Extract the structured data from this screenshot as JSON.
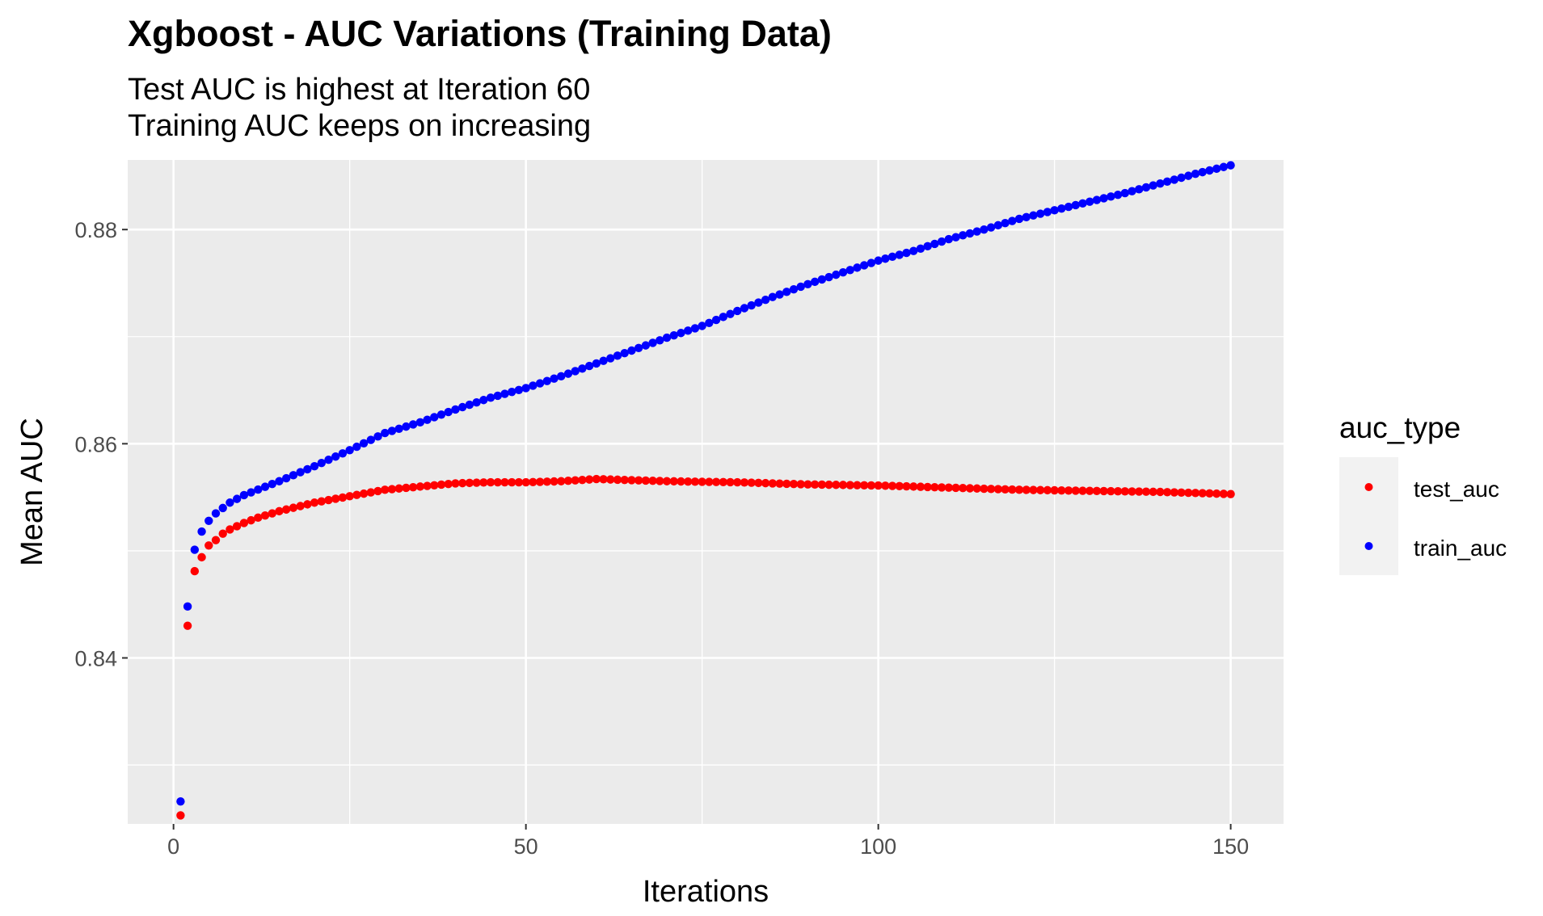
{
  "chart_data": {
    "type": "scatter",
    "title": "Xgboost - AUC Variations (Training Data)",
    "subtitle_lines": [
      "Test AUC is highest at Iteration 60",
      "Training AUC keeps on increasing"
    ],
    "xlabel": "Iterations",
    "ylabel": "Mean AUC",
    "xlim": [
      -6.5,
      157.5
    ],
    "ylim": [
      0.8245,
      0.8865
    ],
    "x_ticks": [
      0,
      50,
      100,
      150
    ],
    "x_tick_labels": [
      "0",
      "50",
      "100",
      "150"
    ],
    "y_ticks": [
      0.84,
      0.86,
      0.88
    ],
    "y_tick_labels": [
      "0.84",
      "0.86",
      "0.88"
    ],
    "grid": true,
    "legend": {
      "title": "auc_type",
      "position": "right",
      "entries": [
        "test_auc",
        "train_auc"
      ]
    },
    "series": [
      {
        "name": "test_auc",
        "color": "#ff0000",
        "anchors": [
          [
            1,
            0.8253
          ],
          [
            2,
            0.843
          ],
          [
            3,
            0.8481
          ],
          [
            4,
            0.8494
          ],
          [
            5,
            0.8505
          ],
          [
            6,
            0.851
          ],
          [
            7,
            0.8516
          ],
          [
            8,
            0.852
          ],
          [
            10,
            0.8526
          ],
          [
            12,
            0.8531
          ],
          [
            15,
            0.8537
          ],
          [
            20,
            0.8545
          ],
          [
            25,
            0.8551
          ],
          [
            30,
            0.8557
          ],
          [
            35,
            0.856
          ],
          [
            40,
            0.8563
          ],
          [
            45,
            0.8564
          ],
          [
            50,
            0.8564
          ],
          [
            55,
            0.8565
          ],
          [
            60,
            0.8567
          ],
          [
            65,
            0.8566
          ],
          [
            70,
            0.8565
          ],
          [
            80,
            0.8564
          ],
          [
            90,
            0.8562
          ],
          [
            100,
            0.8561
          ],
          [
            110,
            0.8559
          ],
          [
            120,
            0.8557
          ],
          [
            130,
            0.8556
          ],
          [
            140,
            0.8555
          ],
          [
            150,
            0.8553
          ]
        ]
      },
      {
        "name": "train_auc",
        "color": "#0000ff",
        "anchors": [
          [
            1,
            0.8266
          ],
          [
            2,
            0.8448
          ],
          [
            3,
            0.8501
          ],
          [
            4,
            0.8518
          ],
          [
            5,
            0.8528
          ],
          [
            6,
            0.8535
          ],
          [
            7,
            0.854
          ],
          [
            8,
            0.8545
          ],
          [
            10,
            0.8552
          ],
          [
            15,
            0.8565
          ],
          [
            20,
            0.8579
          ],
          [
            25,
            0.8594
          ],
          [
            30,
            0.861
          ],
          [
            35,
            0.862
          ],
          [
            40,
            0.8632
          ],
          [
            45,
            0.8643
          ],
          [
            50,
            0.8652
          ],
          [
            55,
            0.8663
          ],
          [
            60,
            0.8675
          ],
          [
            65,
            0.8687
          ],
          [
            70,
            0.8699
          ],
          [
            75,
            0.871
          ],
          [
            80,
            0.8724
          ],
          [
            85,
            0.8737
          ],
          [
            90,
            0.8749
          ],
          [
            95,
            0.876
          ],
          [
            100,
            0.8771
          ],
          [
            105,
            0.878
          ],
          [
            110,
            0.8791
          ],
          [
            115,
            0.88
          ],
          [
            120,
            0.881
          ],
          [
            125,
            0.8818
          ],
          [
            130,
            0.8826
          ],
          [
            135,
            0.8834
          ],
          [
            140,
            0.8843
          ],
          [
            145,
            0.8852
          ],
          [
            150,
            0.886
          ]
        ]
      }
    ]
  }
}
